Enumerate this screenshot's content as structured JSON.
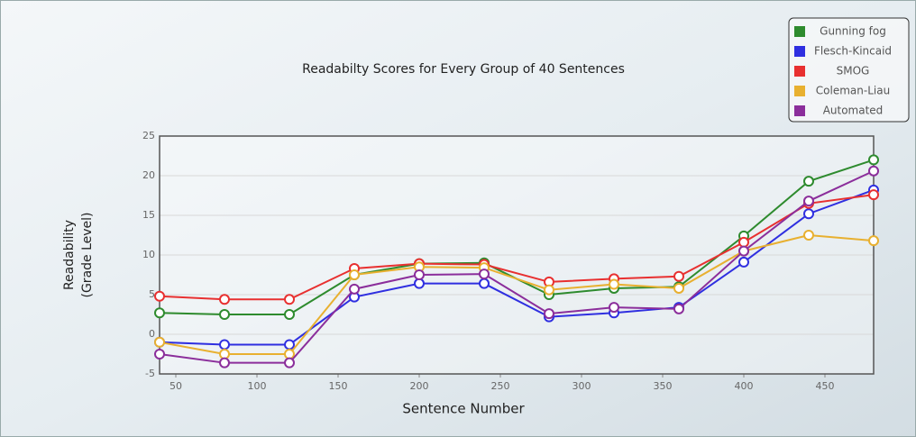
{
  "chart_data": {
    "type": "line",
    "title": "Readabilty Scores for Every Group of 40 Sentences",
    "xlabel": "Sentence Number",
    "ylabel": [
      "Readability",
      "(Grade Level)"
    ],
    "x": [
      40,
      80,
      120,
      160,
      200,
      240,
      280,
      320,
      360,
      400,
      440,
      480
    ],
    "xlim": [
      40,
      480
    ],
    "xticks": [
      50,
      100,
      150,
      200,
      250,
      300,
      350,
      400,
      450
    ],
    "ylim": [
      -5,
      25
    ],
    "yticks": [
      -5,
      0,
      5,
      10,
      15,
      20,
      25
    ],
    "grid": true,
    "legend": "top-right",
    "series": [
      {
        "name": "Gunning fog",
        "color": "#2e8b2e",
        "values": [
          2.7,
          2.5,
          2.5,
          7.5,
          8.9,
          9.0,
          5.0,
          5.8,
          6.0,
          12.4,
          19.3,
          22.0
        ]
      },
      {
        "name": "Flesch-Kincaid",
        "color": "#2f2fe0",
        "values": [
          -1.0,
          -1.3,
          -1.3,
          4.7,
          6.4,
          6.4,
          2.2,
          2.7,
          3.4,
          9.1,
          15.2,
          18.2
        ]
      },
      {
        "name": "SMOG",
        "color": "#e83030",
        "values": [
          4.8,
          4.4,
          4.4,
          8.3,
          8.9,
          8.8,
          6.6,
          7.0,
          7.3,
          11.6,
          16.5,
          17.6
        ]
      },
      {
        "name": "Coleman-Liau",
        "color": "#e8b030",
        "values": [
          -1.0,
          -2.5,
          -2.5,
          7.5,
          8.5,
          8.4,
          5.6,
          6.3,
          5.8,
          10.5,
          12.5,
          11.8
        ]
      },
      {
        "name": "Automated",
        "color": "#8b2e9b",
        "values": [
          -2.5,
          -3.6,
          -3.6,
          5.7,
          7.5,
          7.6,
          2.6,
          3.4,
          3.2,
          10.5,
          16.8,
          20.6
        ]
      }
    ]
  }
}
